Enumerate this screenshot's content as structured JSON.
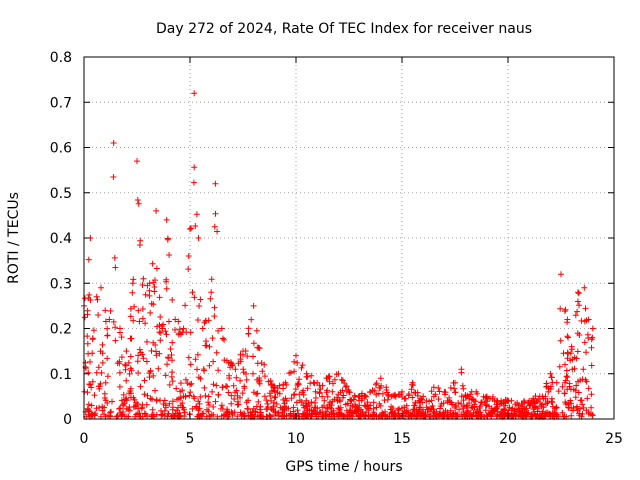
{
  "chart_data": {
    "type": "scatter",
    "title": "Day 272 of 2024, Rate Of TEC Index for receiver naus",
    "xlabel": "GPS time / hours",
    "ylabel": "ROTI / TECUs",
    "xlim": [
      0,
      25
    ],
    "ylim": [
      0,
      0.8
    ],
    "xticks": [
      0,
      5,
      10,
      15,
      20,
      25
    ],
    "yticks": [
      0,
      0.1,
      0.2,
      0.3,
      0.4,
      0.5,
      0.6,
      0.7,
      0.8
    ],
    "xtick_labels": [
      "0",
      "5",
      "10",
      "15",
      "20",
      "25"
    ],
    "ytick_labels": [
      "0",
      "0.1",
      "0.2",
      "0.3",
      "0.4",
      "0.5",
      "0.6",
      "0.7",
      "0.8"
    ],
    "grid": true,
    "marker": "+",
    "color": "#ff0000",
    "series": [
      {
        "name": "ROTI",
        "envelope": [
          [
            0.0,
            0.25
          ],
          [
            0.3,
            0.4
          ],
          [
            0.6,
            0.27
          ],
          [
            0.8,
            0.29
          ],
          [
            1.0,
            0.24
          ],
          [
            1.2,
            0.22
          ],
          [
            1.4,
            0.61
          ],
          [
            1.7,
            0.2
          ],
          [
            2.0,
            0.15
          ],
          [
            2.3,
            0.3
          ],
          [
            2.5,
            0.57
          ],
          [
            2.8,
            0.31
          ],
          [
            3.1,
            0.3
          ],
          [
            3.4,
            0.46
          ],
          [
            3.7,
            0.2
          ],
          [
            3.9,
            0.44
          ],
          [
            4.3,
            0.22
          ],
          [
            4.7,
            0.2
          ],
          [
            5.0,
            0.42
          ],
          [
            5.2,
            0.72
          ],
          [
            5.4,
            0.4
          ],
          [
            5.6,
            0.2
          ],
          [
            6.0,
            0.28
          ],
          [
            6.2,
            0.52
          ],
          [
            6.5,
            0.2
          ],
          [
            7.0,
            0.12
          ],
          [
            7.5,
            0.15
          ],
          [
            8.0,
            0.25
          ],
          [
            8.5,
            0.12
          ],
          [
            9.0,
            0.07
          ],
          [
            9.5,
            0.08
          ],
          [
            10.0,
            0.14
          ],
          [
            10.5,
            0.1
          ],
          [
            11.0,
            0.08
          ],
          [
            11.5,
            0.09
          ],
          [
            12.0,
            0.1
          ],
          [
            12.5,
            0.06
          ],
          [
            13.0,
            0.05
          ],
          [
            13.5,
            0.06
          ],
          [
            14.0,
            0.09
          ],
          [
            14.5,
            0.05
          ],
          [
            15.0,
            0.06
          ],
          [
            15.5,
            0.08
          ],
          [
            16.0,
            0.05
          ],
          [
            16.5,
            0.07
          ],
          [
            17.0,
            0.06
          ],
          [
            17.5,
            0.08
          ],
          [
            17.8,
            0.11
          ],
          [
            18.0,
            0.05
          ],
          [
            18.5,
            0.06
          ],
          [
            19.0,
            0.05
          ],
          [
            19.5,
            0.04
          ],
          [
            20.0,
            0.04
          ],
          [
            20.5,
            0.03
          ],
          [
            21.0,
            0.04
          ],
          [
            21.5,
            0.05
          ],
          [
            22.0,
            0.1
          ],
          [
            22.3,
            0.08
          ],
          [
            22.5,
            0.32
          ],
          [
            22.8,
            0.22
          ],
          [
            23.0,
            0.16
          ],
          [
            23.3,
            0.28
          ],
          [
            23.6,
            0.29
          ],
          [
            23.8,
            0.22
          ],
          [
            24.0,
            0.2
          ]
        ]
      }
    ]
  }
}
